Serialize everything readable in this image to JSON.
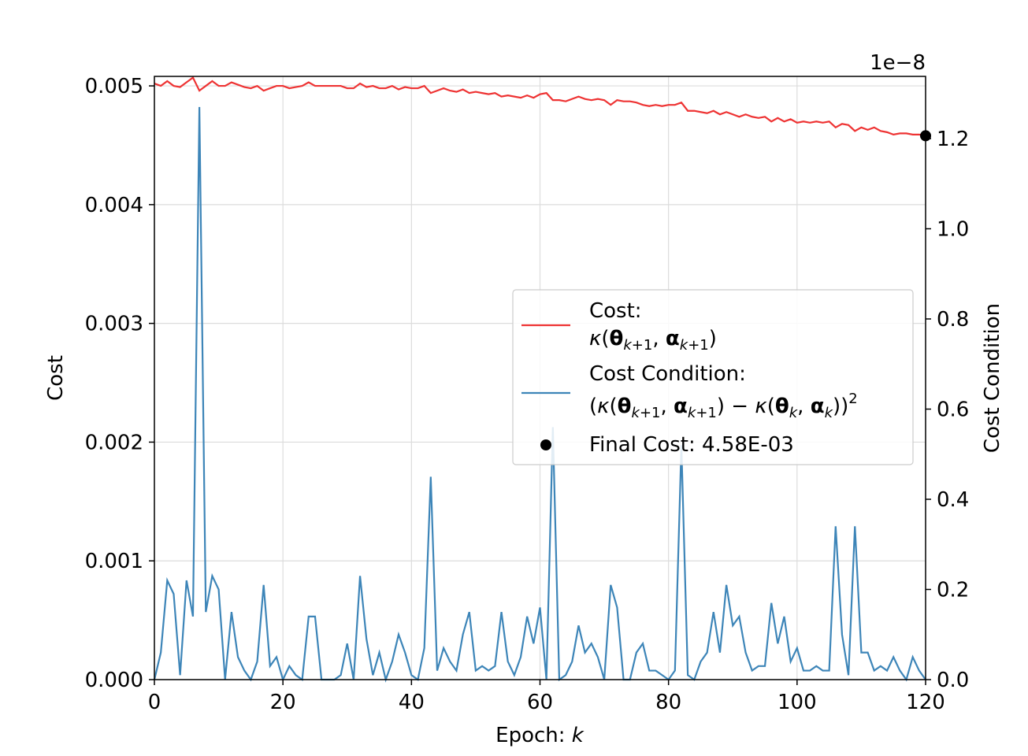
{
  "chart_data": {
    "type": "line",
    "xlabel_prefix": "Epoch: ",
    "xlabel_var": "k",
    "ylabel": "Cost",
    "y2label": "Cost Condition",
    "y2_offset_text": "1e−8",
    "xlim": [
      0,
      120
    ],
    "ylim": [
      0,
      0.00508
    ],
    "y2lim": [
      0,
      1.338
    ],
    "y2_scale_exponent": -8,
    "grid": true,
    "legend_location": "center-right",
    "x_ticks": [
      "0",
      "20",
      "40",
      "60",
      "80",
      "100",
      "120"
    ],
    "x_tick_values": [
      0,
      20,
      40,
      60,
      80,
      100,
      120
    ],
    "y_ticks": [
      "0.000",
      "0.001",
      "0.002",
      "0.003",
      "0.004",
      "0.005"
    ],
    "y_tick_values": [
      0,
      0.001,
      0.002,
      0.003,
      0.004,
      0.005
    ],
    "y2_ticks": [
      "0.0",
      "0.2",
      "0.4",
      "0.6",
      "0.8",
      "1.0",
      "1.2"
    ],
    "y2_tick_values": [
      0,
      0.2,
      0.4,
      0.6,
      0.8,
      1.0,
      1.2
    ],
    "series": [
      {
        "name": "Cost:",
        "name_formula": "κ(θk+1, αk+1)",
        "axis": "left",
        "color": "#ee3333",
        "values": [
          0.00502,
          0.005,
          0.00504,
          0.005,
          0.00499,
          0.00503,
          0.00507,
          0.00496,
          0.005,
          0.00504,
          0.005,
          0.005,
          0.00503,
          0.00501,
          0.00499,
          0.00498,
          0.005,
          0.00496,
          0.00498,
          0.005,
          0.005,
          0.00498,
          0.00499,
          0.005,
          0.00503,
          0.005,
          0.005,
          0.005,
          0.005,
          0.005,
          0.00498,
          0.00498,
          0.00502,
          0.00499,
          0.005,
          0.00498,
          0.00498,
          0.005,
          0.00497,
          0.00499,
          0.00498,
          0.00498,
          0.005,
          0.00494,
          0.00496,
          0.00498,
          0.00496,
          0.00495,
          0.00497,
          0.00494,
          0.00495,
          0.00494,
          0.00493,
          0.00494,
          0.00491,
          0.00492,
          0.00491,
          0.0049,
          0.00492,
          0.0049,
          0.00493,
          0.00494,
          0.00488,
          0.00488,
          0.00487,
          0.00489,
          0.00491,
          0.00489,
          0.00488,
          0.00489,
          0.00488,
          0.00484,
          0.00488,
          0.00487,
          0.00487,
          0.00486,
          0.00484,
          0.00483,
          0.00484,
          0.00483,
          0.00484,
          0.00484,
          0.00486,
          0.00479,
          0.00479,
          0.00478,
          0.00477,
          0.00479,
          0.00476,
          0.00478,
          0.00476,
          0.00474,
          0.00476,
          0.00474,
          0.00473,
          0.00474,
          0.0047,
          0.00473,
          0.0047,
          0.00472,
          0.00469,
          0.0047,
          0.00469,
          0.0047,
          0.00469,
          0.0047,
          0.00465,
          0.00468,
          0.00467,
          0.00462,
          0.00465,
          0.00463,
          0.00465,
          0.00462,
          0.00461,
          0.00459,
          0.0046,
          0.0046,
          0.00459,
          0.00459,
          0.00458
        ]
      },
      {
        "name": "Cost Condition:",
        "name_formula": "(κ(θk+1, αk+1) − κ(θk, αk))²",
        "axis": "right",
        "color": "#3d85b8",
        "values": [
          0.0,
          0.06,
          0.22,
          0.19,
          0.01,
          0.22,
          0.14,
          1.27,
          0.15,
          0.23,
          0.2,
          0.0,
          0.15,
          0.05,
          0.02,
          0.0,
          0.04,
          0.21,
          0.03,
          0.05,
          0.0,
          0.03,
          0.01,
          0.0,
          0.14,
          0.14,
          0.0,
          0.0,
          0.0,
          0.01,
          0.08,
          0.0,
          0.23,
          0.09,
          0.01,
          0.06,
          0.0,
          0.04,
          0.1,
          0.06,
          0.01,
          0.0,
          0.07,
          0.45,
          0.02,
          0.07,
          0.04,
          0.02,
          0.1,
          0.15,
          0.02,
          0.03,
          0.02,
          0.03,
          0.15,
          0.04,
          0.01,
          0.05,
          0.14,
          0.08,
          0.16,
          0.0,
          0.56,
          0.0,
          0.01,
          0.04,
          0.12,
          0.06,
          0.08,
          0.05,
          0.0,
          0.21,
          0.16,
          0.0,
          0.0,
          0.06,
          0.08,
          0.02,
          0.02,
          0.01,
          0.0,
          0.02,
          0.52,
          0.01,
          0.0,
          0.04,
          0.06,
          0.15,
          0.06,
          0.21,
          0.12,
          0.14,
          0.06,
          0.02,
          0.03,
          0.03,
          0.17,
          0.08,
          0.14,
          0.04,
          0.07,
          0.02,
          0.02,
          0.03,
          0.02,
          0.02,
          0.34,
          0.1,
          0.01,
          0.34,
          0.06,
          0.06,
          0.02,
          0.03,
          0.02,
          0.05,
          0.02,
          0.0,
          0.05,
          0.02,
          0.0
        ]
      }
    ],
    "final_point": {
      "label": "Final Cost: 4.58E-03",
      "x": 120,
      "y": 0.00458,
      "color": "#000000"
    }
  }
}
